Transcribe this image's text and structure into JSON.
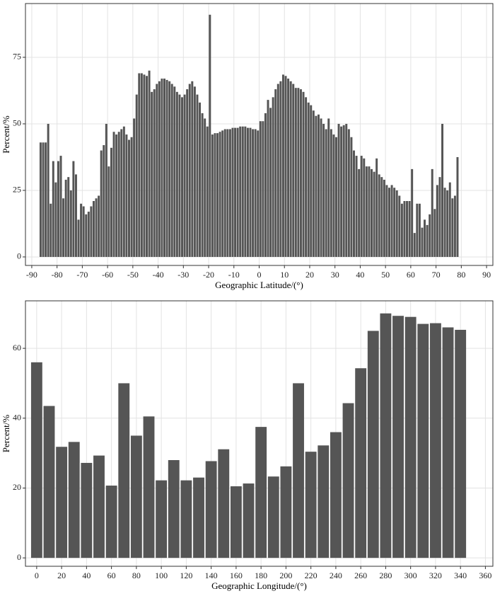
{
  "chart_data": [
    {
      "type": "histogram",
      "x_label": "Geographic Latitude/(°)",
      "y_label": "Percent/%",
      "bins": [
        -87,
        -86,
        -85,
        -84,
        -83,
        -82,
        -81,
        -80,
        -79,
        -78,
        -77,
        -76,
        -75,
        -74,
        -73,
        -72,
        -71,
        -70,
        -69,
        -68,
        -67,
        -66,
        -65,
        -64,
        -63,
        -62,
        -61,
        -60,
        -59,
        -58,
        -57,
        -56,
        -55,
        -54,
        -53,
        -52,
        -51,
        -50,
        -49,
        -48,
        -47,
        -46,
        -45,
        -44,
        -43,
        -42,
        -41,
        -40,
        -39,
        -38,
        -37,
        -36,
        -35,
        -34,
        -33,
        -32,
        -31,
        -30,
        -29,
        -28,
        -27,
        -26,
        -25,
        -24,
        -23,
        -22,
        -21,
        -20,
        -19,
        -18,
        -17,
        -16,
        -15,
        -14,
        -13,
        -12,
        -11,
        -10,
        -9,
        -8,
        -7,
        -6,
        -5,
        -4,
        -3,
        -2,
        -1,
        0,
        1,
        2,
        3,
        4,
        5,
        6,
        7,
        8,
        9,
        10,
        11,
        12,
        13,
        14,
        15,
        16,
        17,
        18,
        19,
        20,
        21,
        22,
        23,
        24,
        25,
        26,
        27,
        28,
        29,
        30,
        31,
        32,
        33,
        34,
        35,
        36,
        37,
        38,
        39,
        40,
        41,
        42,
        43,
        44,
        45,
        46,
        47,
        48,
        49,
        50,
        51,
        52,
        53,
        54,
        55,
        56,
        57,
        58,
        59,
        60,
        61,
        62,
        63,
        64,
        65,
        66,
        67,
        68,
        69,
        70,
        71,
        72,
        73,
        74,
        75,
        76,
        77,
        78,
        79
      ],
      "values": [
        43,
        43,
        43,
        50,
        20,
        36,
        28,
        36,
        38,
        22,
        29,
        30,
        25,
        36,
        31,
        14,
        20,
        19,
        16,
        17,
        19,
        21,
        22,
        23,
        40,
        42,
        50,
        34,
        41,
        47,
        46,
        47,
        48,
        49,
        46,
        44,
        45,
        52,
        61,
        69,
        69,
        68.5,
        68,
        70,
        62,
        63,
        65,
        66,
        67,
        67,
        66.5,
        66,
        65,
        64,
        62,
        61,
        60,
        61,
        63,
        65,
        66,
        64,
        61,
        58,
        54,
        52,
        49,
        91,
        46,
        46.5,
        46.5,
        47,
        47.5,
        48,
        48,
        48,
        48.5,
        48.5,
        48.5,
        49,
        49,
        49,
        48.5,
        48.5,
        48,
        48,
        47.5,
        51,
        51,
        54,
        59,
        56,
        60,
        63,
        65,
        66,
        68.5,
        68,
        67,
        66,
        65,
        63.5,
        63.5,
        63,
        62,
        60,
        58,
        57,
        55,
        53,
        53.5,
        52,
        50,
        48,
        52,
        48,
        46,
        45,
        50,
        49,
        49.5,
        50,
        48,
        45,
        40,
        38,
        33,
        38,
        37,
        34,
        34,
        33,
        32,
        37,
        31,
        30,
        29,
        27,
        26,
        27,
        26,
        25,
        23,
        20,
        21,
        21,
        21,
        33,
        9,
        20,
        20,
        11,
        14,
        12,
        16,
        33,
        18,
        27,
        30,
        50,
        26,
        25,
        28,
        22,
        23,
        37.5
      ],
      "color": "#555555",
      "xlim": [
        -92.5,
        92.5
      ],
      "xticks": [
        -90,
        -80,
        -70,
        -60,
        -50,
        -40,
        -30,
        -20,
        -10,
        0,
        10,
        20,
        30,
        40,
        50,
        60,
        70,
        80,
        90
      ],
      "ylim": [
        -3.2,
        95.2
      ],
      "yticks": [
        0,
        25,
        50,
        75
      ],
      "grid": true
    },
    {
      "type": "bar",
      "x_label": "Geographic Longitude/(°)",
      "y_label": "Percent/%",
      "x": [
        0,
        10,
        20,
        30,
        40,
        50,
        60,
        70,
        80,
        90,
        100,
        110,
        120,
        130,
        140,
        150,
        160,
        170,
        180,
        190,
        200,
        210,
        220,
        230,
        240,
        250,
        260,
        270,
        280,
        290,
        300,
        310,
        320,
        330,
        340
      ],
      "values": [
        56,
        43.5,
        31.8,
        33.2,
        27.2,
        29.3,
        20.7,
        50,
        35,
        40.5,
        22.2,
        28,
        22.2,
        23,
        27.7,
        31.1,
        20.5,
        21.3,
        37.5,
        23.3,
        26.2,
        50,
        30.4,
        32.2,
        36,
        44.3,
        54.3,
        65,
        70,
        69.3,
        69,
        67,
        67.2,
        66,
        65.3
      ],
      "color": "#555555",
      "xlim": [
        -9,
        366
      ],
      "xticks": [
        0,
        20,
        40,
        60,
        80,
        100,
        120,
        140,
        160,
        180,
        200,
        220,
        240,
        260,
        280,
        300,
        320,
        340,
        360
      ],
      "ylim": [
        -2.4,
        73.6
      ],
      "yticks": [
        0,
        20,
        40,
        60
      ],
      "grid": true
    }
  ]
}
